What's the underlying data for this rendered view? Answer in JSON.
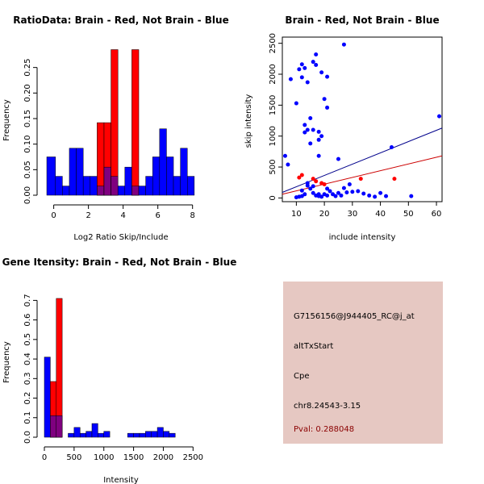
{
  "colors": {
    "red": "#ff0000",
    "blue": "#0000ff",
    "overlap": "#7f007f",
    "redline": "#cc0000",
    "navyline": "#00008b",
    "info_bg": "#e6c8c2",
    "pval": "#8b0000"
  },
  "chart_data": [
    {
      "id": "ratio",
      "type": "histogram",
      "title": "RatioData: Brain - Red, Not Brain - Blue",
      "xlabel": "Log2 Ratio Skip/Include",
      "ylabel": "Frequency",
      "xlim": [
        -0.4,
        8.2
      ],
      "ylim": [
        0,
        0.3
      ],
      "xticks": [
        0,
        2,
        4,
        6,
        8
      ],
      "yticks": [
        0,
        0.05,
        0.1,
        0.15,
        0.2,
        0.25
      ],
      "ytick_labels": [
        "0.00",
        "0.05",
        "0.10",
        "0.15",
        "0.20",
        "0.25"
      ],
      "bins": [
        -0.4,
        0.1,
        0.5,
        0.9,
        1.3,
        1.7,
        2.1,
        2.5,
        2.9,
        3.3,
        3.7,
        4.1,
        4.5,
        4.9,
        5.3,
        5.7,
        6.1,
        6.5,
        6.9,
        7.3,
        7.7,
        8.1
      ],
      "blue": [
        0.075,
        0.037,
        0.018,
        0.092,
        0.092,
        0.037,
        0.037,
        0.018,
        0.055,
        0.037,
        0.018,
        0.055,
        0.018,
        0.018,
        0.037,
        0.075,
        0.13,
        0.075,
        0.037,
        0.092,
        0.037
      ],
      "red": [
        0,
        0,
        0,
        0,
        0,
        0,
        0,
        0.142,
        0.142,
        0.285,
        0,
        0,
        0.285,
        0,
        0,
        0,
        0,
        0,
        0,
        0,
        0
      ]
    },
    {
      "id": "scatter",
      "type": "scatter",
      "title": "Brain - Red, Not Brain - Blue",
      "xlabel": "include intensity",
      "ylabel": "skip intensity",
      "xlim": [
        5,
        62
      ],
      "ylim": [
        -60,
        2600
      ],
      "xticks": [
        10,
        20,
        30,
        40,
        50,
        60
      ],
      "yticks": [
        0,
        500,
        1000,
        1500,
        2000,
        2500
      ],
      "blue": [
        [
          6,
          680
        ],
        [
          7,
          540
        ],
        [
          8,
          1920
        ],
        [
          10,
          1530
        ],
        [
          11,
          2080
        ],
        [
          12,
          1950
        ],
        [
          12,
          2160
        ],
        [
          13,
          1060
        ],
        [
          13,
          1180
        ],
        [
          13,
          2100
        ],
        [
          14,
          1870
        ],
        [
          14,
          1100
        ],
        [
          15,
          1290
        ],
        [
          15,
          880
        ],
        [
          16,
          2200
        ],
        [
          16,
          1100
        ],
        [
          17,
          2320
        ],
        [
          17,
          2150
        ],
        [
          18,
          1070
        ],
        [
          18,
          940
        ],
        [
          18,
          680
        ],
        [
          19,
          2030
        ],
        [
          19,
          1000
        ],
        [
          20,
          1600
        ],
        [
          21,
          1960
        ],
        [
          21,
          1460
        ],
        [
          25,
          630
        ],
        [
          27,
          2480
        ],
        [
          14,
          200
        ],
        [
          15,
          150
        ],
        [
          16,
          80
        ],
        [
          17,
          40
        ],
        [
          18,
          30
        ],
        [
          19,
          20
        ],
        [
          20,
          60
        ],
        [
          21,
          150
        ],
        [
          22,
          110
        ],
        [
          23,
          60
        ],
        [
          24,
          30
        ],
        [
          25,
          80
        ],
        [
          26,
          40
        ],
        [
          27,
          160
        ],
        [
          28,
          90
        ],
        [
          29,
          220
        ],
        [
          30,
          100
        ],
        [
          11,
          20
        ],
        [
          12,
          30
        ],
        [
          13,
          60
        ],
        [
          10,
          10
        ],
        [
          32,
          110
        ],
        [
          34,
          70
        ],
        [
          36,
          40
        ],
        [
          38,
          20
        ],
        [
          40,
          80
        ],
        [
          42,
          30
        ],
        [
          12,
          120
        ],
        [
          14,
          240
        ],
        [
          16,
          190
        ],
        [
          18,
          60
        ],
        [
          21,
          40
        ],
        [
          44,
          820
        ],
        [
          51,
          30
        ],
        [
          61,
          1320
        ]
      ],
      "red": [
        [
          11,
          330
        ],
        [
          12,
          370
        ],
        [
          16,
          310
        ],
        [
          17,
          270
        ],
        [
          19,
          240
        ],
        [
          20,
          220
        ],
        [
          33,
          310
        ],
        [
          45,
          310
        ]
      ],
      "lines": [
        {
          "color": "navyline",
          "x": [
            5,
            62
          ],
          "y": [
            90,
            1130
          ]
        },
        {
          "color": "redline",
          "x": [
            5,
            62
          ],
          "y": [
            60,
            680
          ]
        }
      ]
    },
    {
      "id": "intensity",
      "type": "histogram",
      "title": "Gene Itensity: Brain - Red, Not Brain - Blue",
      "xlabel": "Intensity",
      "ylabel": "Frequency",
      "xlim": [
        0,
        2550
      ],
      "ylim": [
        0,
        0.78
      ],
      "xticks": [
        0,
        500,
        1000,
        1500,
        2000,
        2500
      ],
      "yticks": [
        0,
        0.1,
        0.2,
        0.3,
        0.4,
        0.5,
        0.6,
        0.7
      ],
      "ytick_labels": [
        "0.0",
        "0.1",
        "0.2",
        "0.3",
        "0.4",
        "0.5",
        "0.6",
        "0.7"
      ],
      "bins": [
        0,
        100,
        200,
        300,
        400,
        500,
        600,
        700,
        800,
        900,
        1000,
        1100,
        1200,
        1300,
        1400,
        1500,
        1600,
        1700,
        1800,
        1900,
        2000,
        2100,
        2200,
        2300,
        2400,
        2500
      ],
      "blue": [
        0.41,
        0.11,
        0.11,
        0,
        0.02,
        0.05,
        0.02,
        0.03,
        0.07,
        0.02,
        0.03,
        0,
        0,
        0,
        0.02,
        0.02,
        0.02,
        0.03,
        0.03,
        0.05,
        0.03,
        0.02,
        0,
        0,
        0
      ],
      "red": [
        0,
        0.285,
        0.71,
        0,
        0,
        0,
        0,
        0,
        0,
        0,
        0,
        0,
        0,
        0,
        0,
        0,
        0,
        0,
        0,
        0,
        0,
        0,
        0,
        0,
        0
      ]
    }
  ],
  "info": {
    "probe": "G7156156@J944405_RC@j_at",
    "event": "altTxStart",
    "gene": "Cpe",
    "location": "chr8.24543-3.15",
    "pval": "Pval: 0.288048"
  }
}
